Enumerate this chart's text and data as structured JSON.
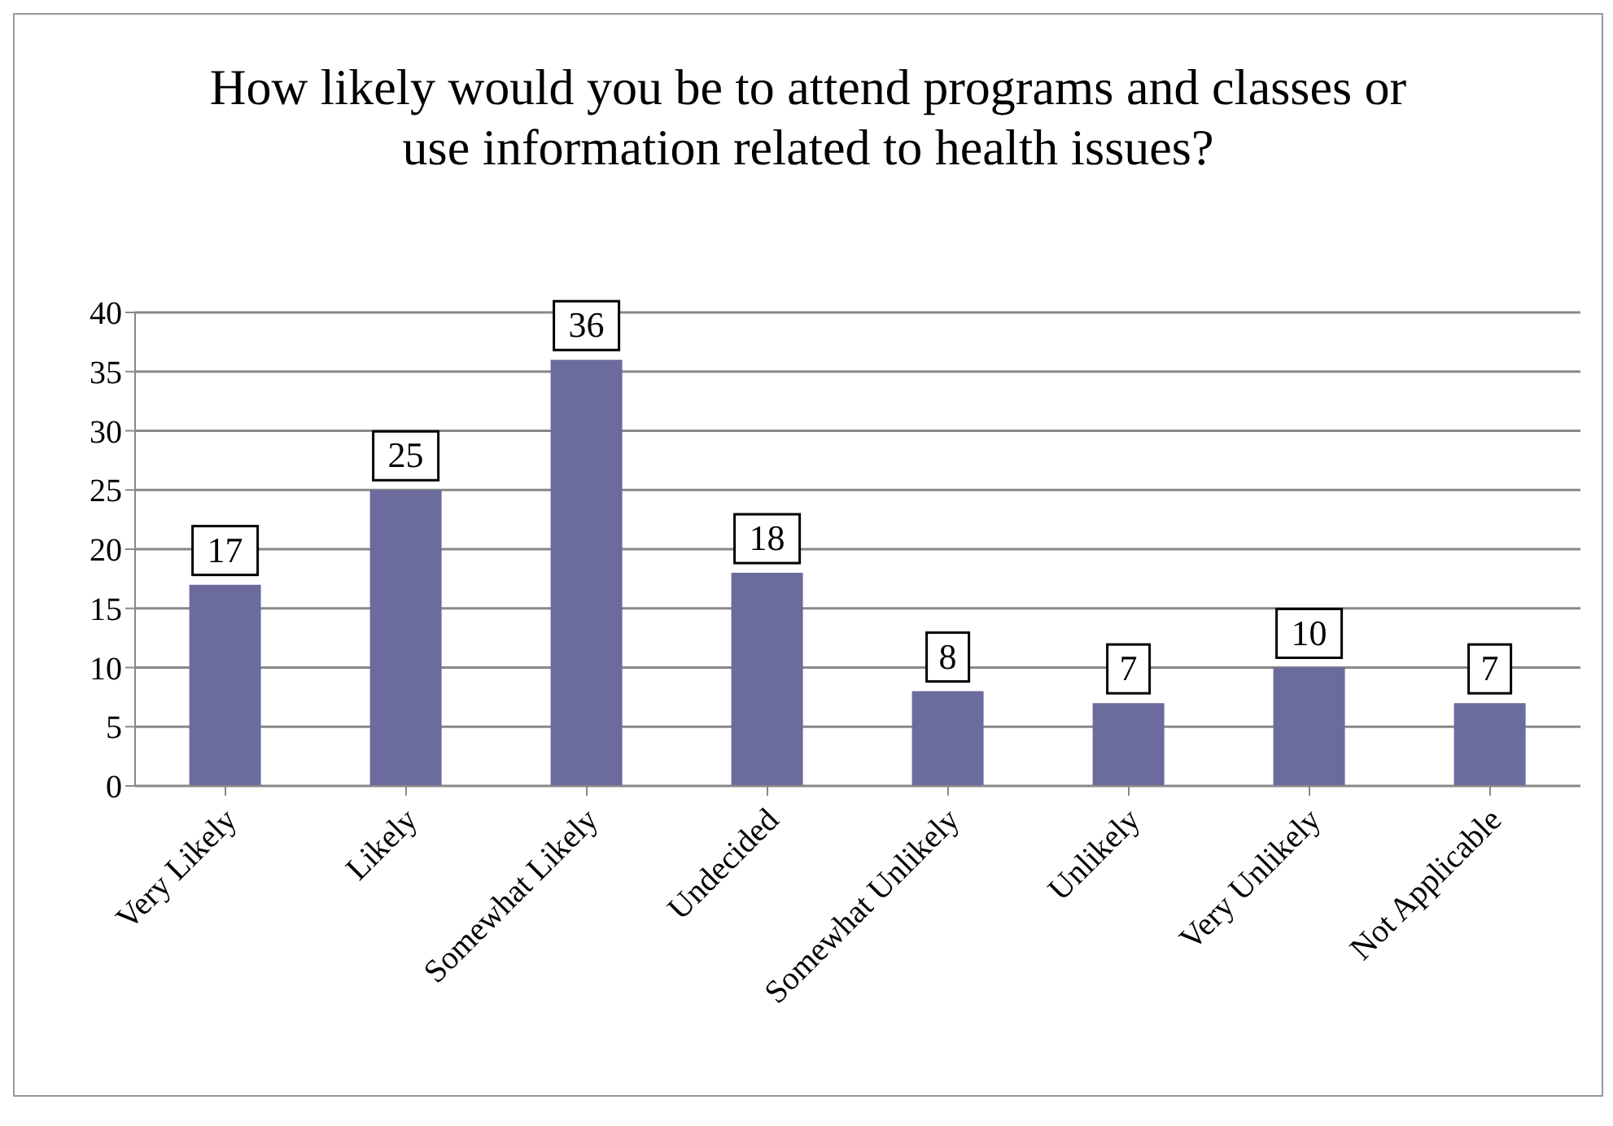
{
  "chart_data": {
    "type": "bar",
    "title": "How likely would you be to attend programs and classes or use information related to health issues?",
    "categories": [
      "Very Likely",
      "Likely",
      "Somewhat Likely",
      "Undecided",
      "Somewhat Unlikely",
      "Unlikely",
      "Very Unlikely",
      "Not Applicable"
    ],
    "values": [
      17,
      25,
      36,
      18,
      8,
      7,
      10,
      7
    ],
    "color": "#6b6b9e",
    "ylim": [
      0,
      40
    ],
    "yticks": [
      0,
      5,
      10,
      15,
      20,
      25,
      30,
      35,
      40
    ],
    "grid": "y",
    "legend": false,
    "data_labels": true
  }
}
